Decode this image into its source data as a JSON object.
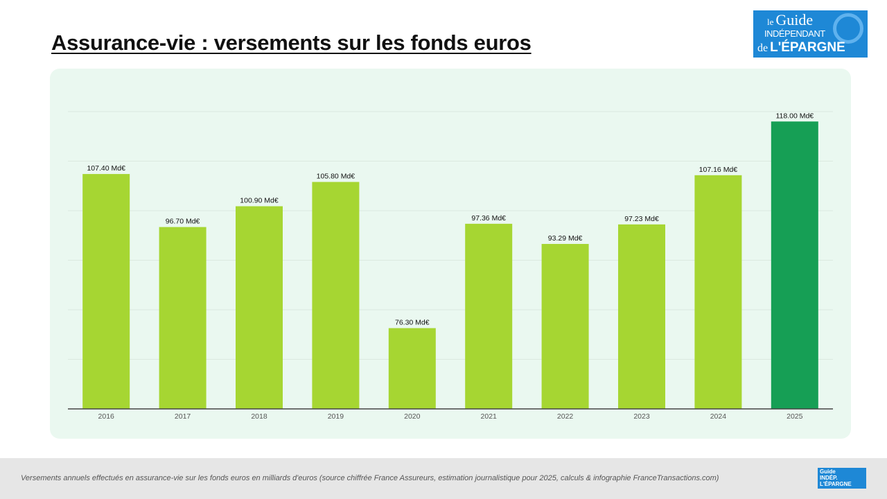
{
  "header": {
    "title": "Assurance-vie : versements sur les fonds euros"
  },
  "logo": {
    "text": "le Guide INDÉPENDANT de L'ÉPARGNE"
  },
  "footer": {
    "note": "Versements annuels effectués en assurance-vie sur les fonds euros en milliards d'euros (source chiffrée France Assureurs, estimation journalistique pour 2025, calculs & infographie FranceTransactions.com)"
  },
  "chart_data": {
    "type": "bar",
    "categories": [
      "2016",
      "2017",
      "2018",
      "2019",
      "2020",
      "2021",
      "2022",
      "2023",
      "2024",
      "2025"
    ],
    "values": [
      107.4,
      96.7,
      100.9,
      105.8,
      76.3,
      97.36,
      93.29,
      97.23,
      107.16,
      118.0
    ],
    "data_labels": [
      "107.40 Md€",
      "96.70 Md€",
      "100.90 Md€",
      "105.80 Md€",
      "76.30 Md€",
      "97.36 Md€",
      "93.29 Md€",
      "97.23 Md€",
      "107.16 Md€",
      "118.00 Md€"
    ],
    "unit": "Md€",
    "ylim": [
      60,
      120
    ],
    "grid": true,
    "colors": {
      "default": "#a6d632",
      "highlight": "#169f55",
      "highlight_category": "2025"
    }
  }
}
